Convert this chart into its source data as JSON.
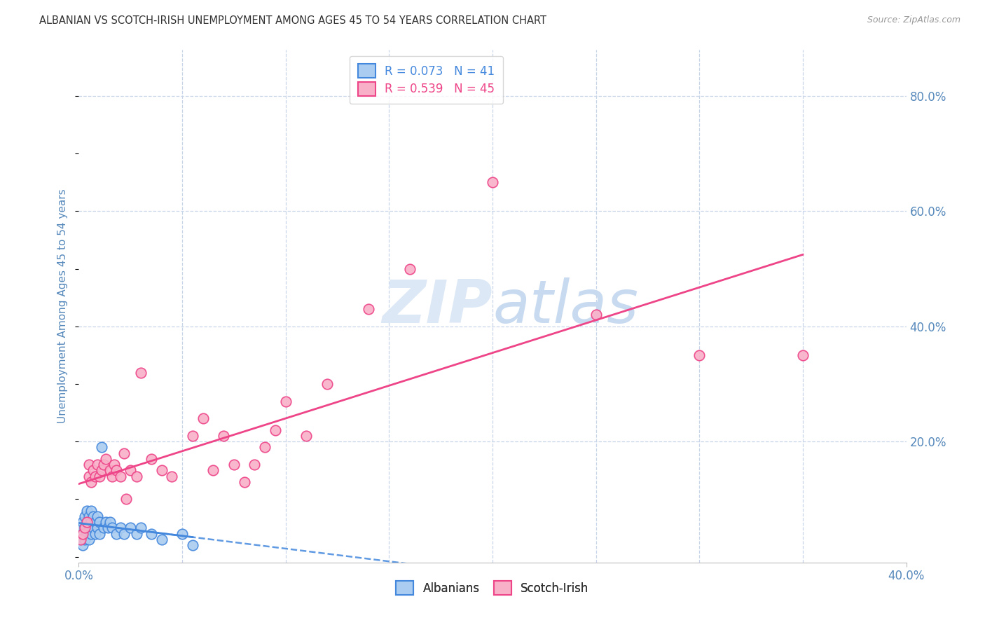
{
  "title": "ALBANIAN VS SCOTCH-IRISH UNEMPLOYMENT AMONG AGES 45 TO 54 YEARS CORRELATION CHART",
  "source": "Source: ZipAtlas.com",
  "ylabel": "Unemployment Among Ages 45 to 54 years",
  "xlim": [
    0.0,
    0.4
  ],
  "ylim": [
    -0.01,
    0.88
  ],
  "albanian_R": 0.073,
  "albanian_N": 41,
  "scotch_irish_R": 0.539,
  "scotch_irish_N": 45,
  "albanian_color": "#aaccf0",
  "albanian_line_color": "#4488dd",
  "scotch_irish_color": "#f8b0c8",
  "scotch_irish_line_color": "#ee4488",
  "background_color": "#ffffff",
  "grid_color": "#c8d4e8",
  "title_color": "#333333",
  "axis_label_color": "#5588bb",
  "watermark_color": "#dce8f5",
  "legend_box_color": "#ffffff",
  "albanians_x": [
    0.001,
    0.001,
    0.002,
    0.002,
    0.002,
    0.003,
    0.003,
    0.003,
    0.004,
    0.004,
    0.004,
    0.005,
    0.005,
    0.005,
    0.006,
    0.006,
    0.006,
    0.007,
    0.007,
    0.008,
    0.008,
    0.009,
    0.009,
    0.01,
    0.01,
    0.011,
    0.012,
    0.013,
    0.014,
    0.015,
    0.016,
    0.018,
    0.02,
    0.022,
    0.025,
    0.028,
    0.03,
    0.035,
    0.04,
    0.05,
    0.055
  ],
  "albanians_y": [
    0.03,
    0.05,
    0.04,
    0.02,
    0.06,
    0.03,
    0.05,
    0.07,
    0.04,
    0.06,
    0.08,
    0.03,
    0.05,
    0.07,
    0.04,
    0.06,
    0.08,
    0.05,
    0.07,
    0.04,
    0.06,
    0.05,
    0.07,
    0.04,
    0.06,
    0.19,
    0.05,
    0.06,
    0.05,
    0.06,
    0.05,
    0.04,
    0.05,
    0.04,
    0.05,
    0.04,
    0.05,
    0.04,
    0.03,
    0.04,
    0.02
  ],
  "scotch_irish_x": [
    0.001,
    0.002,
    0.003,
    0.004,
    0.005,
    0.005,
    0.006,
    0.007,
    0.008,
    0.009,
    0.01,
    0.011,
    0.012,
    0.013,
    0.015,
    0.016,
    0.017,
    0.018,
    0.02,
    0.022,
    0.023,
    0.025,
    0.028,
    0.03,
    0.035,
    0.04,
    0.045,
    0.055,
    0.06,
    0.065,
    0.07,
    0.075,
    0.08,
    0.085,
    0.09,
    0.095,
    0.1,
    0.11,
    0.12,
    0.14,
    0.16,
    0.2,
    0.25,
    0.3,
    0.35
  ],
  "scotch_irish_y": [
    0.03,
    0.04,
    0.05,
    0.06,
    0.14,
    0.16,
    0.13,
    0.15,
    0.14,
    0.16,
    0.14,
    0.15,
    0.16,
    0.17,
    0.15,
    0.14,
    0.16,
    0.15,
    0.14,
    0.18,
    0.1,
    0.15,
    0.14,
    0.32,
    0.17,
    0.15,
    0.14,
    0.21,
    0.24,
    0.15,
    0.21,
    0.16,
    0.13,
    0.16,
    0.19,
    0.22,
    0.27,
    0.21,
    0.3,
    0.43,
    0.5,
    0.65,
    0.42,
    0.35,
    0.35
  ]
}
